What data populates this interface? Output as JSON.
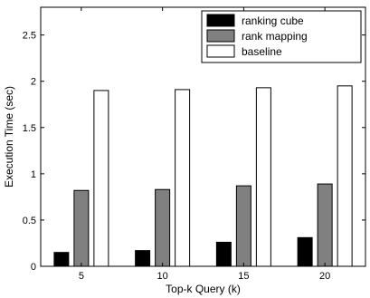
{
  "chart_data": {
    "type": "bar",
    "title": "",
    "xlabel": "Top-k Query (k)",
    "ylabel": "Execution Time (sec)",
    "categories": [
      "5",
      "10",
      "15",
      "20"
    ],
    "ylim": [
      0,
      2.8
    ],
    "yticks": [
      "0",
      "0.5",
      "1",
      "1.5",
      "2",
      "2.5"
    ],
    "grid": false,
    "legend_position": "top-right",
    "series": [
      {
        "name": "ranking cube",
        "color": "#000000",
        "values": [
          0.15,
          0.17,
          0.26,
          0.31
        ]
      },
      {
        "name": "rank mapping",
        "color": "#808080",
        "values": [
          0.82,
          0.83,
          0.87,
          0.89
        ]
      },
      {
        "name": "baseline",
        "color": "#ffffff",
        "values": [
          1.9,
          1.91,
          1.93,
          1.95
        ]
      }
    ]
  }
}
